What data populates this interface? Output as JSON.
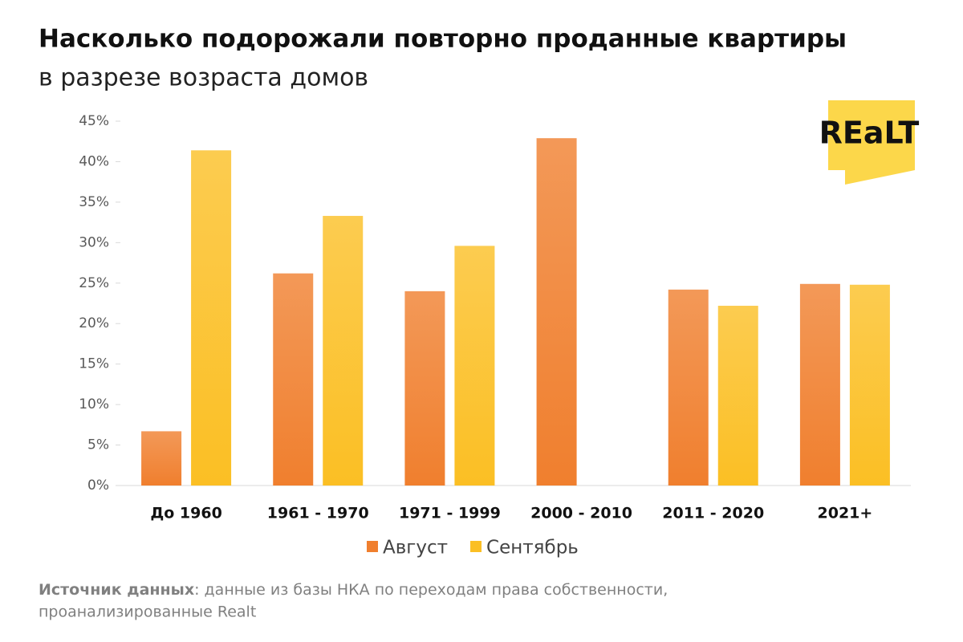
{
  "chart_data": {
    "type": "bar",
    "title": "Насколько подорожали повторно проданные квартиры",
    "subtitle": "в разрезе возраста домов",
    "brand": "REaLT",
    "categories": [
      "До 1960",
      "1961 - 1970",
      "1971 - 1999",
      "2000 - 2010",
      "2011 - 2020",
      "2021+"
    ],
    "series": [
      {
        "name": "Август",
        "color": "#f07f2e",
        "values": [
          6.7,
          26.2,
          24.0,
          42.9,
          24.2,
          24.9
        ]
      },
      {
        "name": "Сентябрь",
        "color": "#fbbf24",
        "values": [
          41.4,
          33.3,
          29.6,
          0,
          22.2,
          24.8
        ]
      }
    ],
    "ylim": [
      0,
      45
    ],
    "yticks": [
      {
        "value": 0,
        "label": "0%"
      },
      {
        "value": 5,
        "label": "5%"
      },
      {
        "value": 10,
        "label": "10%"
      },
      {
        "value": 15,
        "label": "15%"
      },
      {
        "value": 20,
        "label": "20%"
      },
      {
        "value": 25,
        "label": "25%"
      },
      {
        "value": 30,
        "label": "30%"
      },
      {
        "value": 35,
        "label": "35%"
      },
      {
        "value": 40,
        "label": "40%"
      },
      {
        "value": 45,
        "label": "45%"
      }
    ],
    "grid": false,
    "legend": "bottom",
    "source_label": "Источник данных",
    "source_text": ": данные из базы НКА по переходам права собственности,",
    "source_text_2": "проанализированные Realt"
  }
}
